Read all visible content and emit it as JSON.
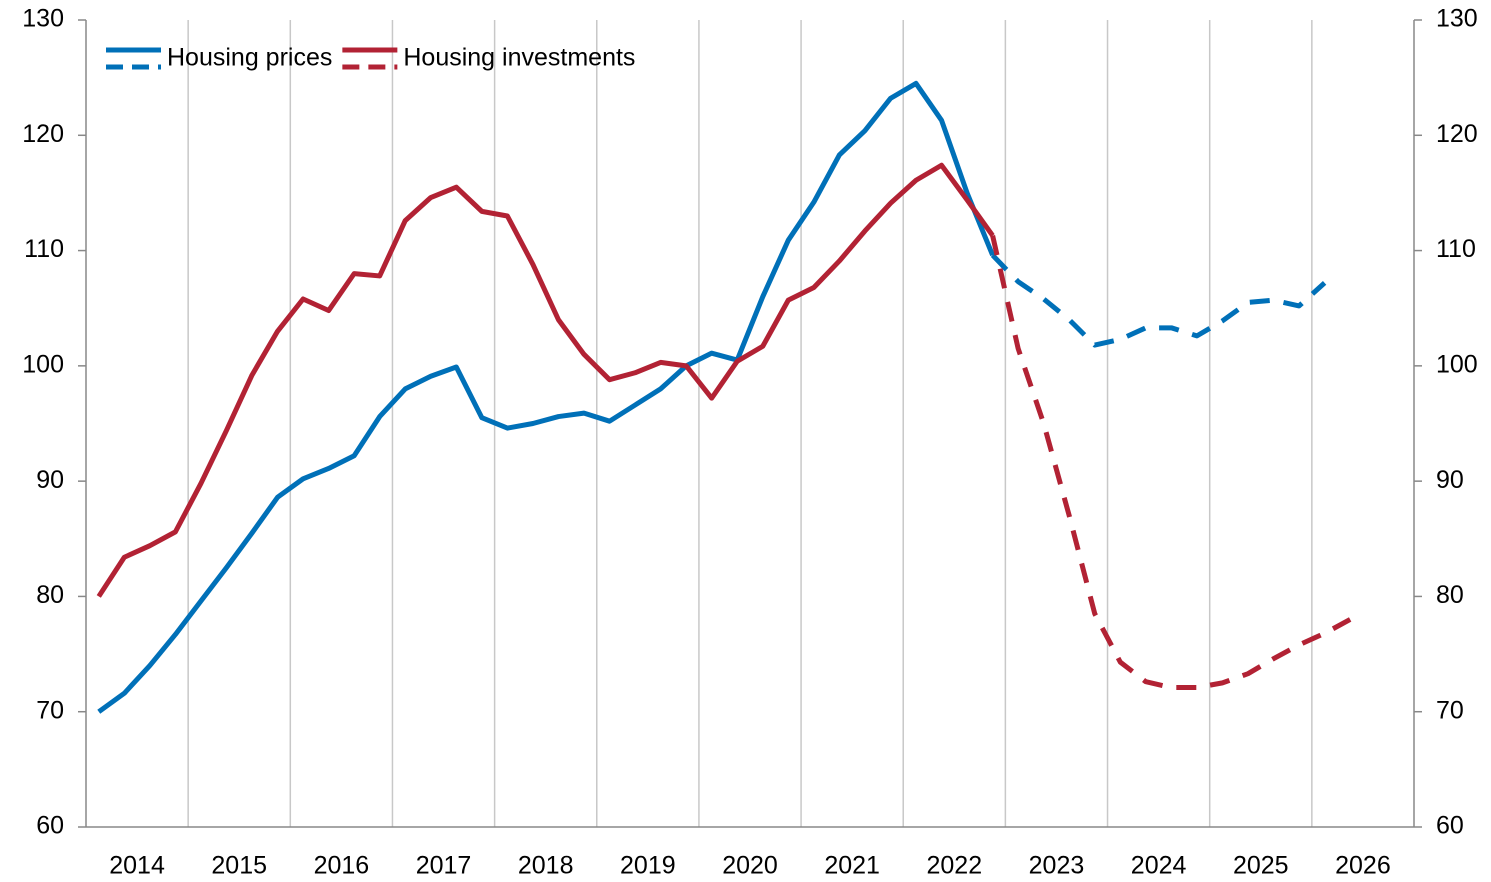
{
  "chart_data": {
    "type": "line",
    "x": [
      2014.125,
      2014.375,
      2014.625,
      2014.875,
      2015.125,
      2015.375,
      2015.625,
      2015.875,
      2016.125,
      2016.375,
      2016.625,
      2016.875,
      2017.125,
      2017.375,
      2017.625,
      2017.875,
      2018.125,
      2018.375,
      2018.625,
      2018.875,
      2019.125,
      2019.375,
      2019.625,
      2019.875,
      2020.125,
      2020.375,
      2020.625,
      2020.875,
      2021.125,
      2021.375,
      2021.625,
      2021.875,
      2022.125,
      2022.375,
      2022.625,
      2022.875,
      2023.125,
      2023.375,
      2023.625,
      2023.875,
      2024.125,
      2024.375,
      2024.625,
      2024.875,
      2025.125,
      2025.375,
      2025.625,
      2025.875,
      2026.125,
      2026.375
    ],
    "series": [
      {
        "name": "Housing prices",
        "color": "#0070b8",
        "dashed_from": 35,
        "values": [
          70,
          71.6,
          74,
          76.7,
          79.6,
          82.5,
          85.5,
          88.6,
          90.2,
          91.1,
          92.2,
          95.6,
          98,
          99.1,
          99.9,
          95.5,
          94.6,
          95,
          95.6,
          95.9,
          95.2,
          96.6,
          98,
          100,
          101.1,
          100.5,
          106,
          110.9,
          114.2,
          118.3,
          120.4,
          123.2,
          124.5,
          121.3,
          115,
          109.6,
          107.3,
          105.8,
          104,
          101.8,
          102.3,
          103.3,
          103.3,
          102.6,
          103.9,
          105.5,
          105.7,
          105.2,
          107.2,
          null
        ]
      },
      {
        "name": "Housing investments",
        "color": "#b22234",
        "dashed_from": 35,
        "values": [
          80,
          83.4,
          84.4,
          85.6,
          89.8,
          94.4,
          99.2,
          103,
          105.8,
          104.8,
          108,
          107.8,
          112.6,
          114.6,
          115.5,
          113.4,
          113,
          108.8,
          104,
          101,
          98.8,
          99.4,
          100.3,
          100,
          97.2,
          100.4,
          101.7,
          105.7,
          106.8,
          109.1,
          111.7,
          114.1,
          116.1,
          117.4,
          114.4,
          111.3,
          101.5,
          95,
          87,
          78.5,
          74.3,
          72.6,
          72.1,
          72.1,
          72.5,
          73.3,
          74.6,
          75.8,
          76.8,
          78
        ]
      }
    ],
    "xlim": [
      2014,
      2027
    ],
    "xgrid": [
      2015,
      2016,
      2017,
      2018,
      2019,
      2020,
      2021,
      2022,
      2023,
      2024,
      2025,
      2026
    ],
    "xticks": [
      {
        "value": 2014.5,
        "label": "2014"
      },
      {
        "value": 2015.5,
        "label": "2015"
      },
      {
        "value": 2016.5,
        "label": "2016"
      },
      {
        "value": 2017.5,
        "label": "2017"
      },
      {
        "value": 2018.5,
        "label": "2018"
      },
      {
        "value": 2019.5,
        "label": "2019"
      },
      {
        "value": 2020.5,
        "label": "2020"
      },
      {
        "value": 2021.5,
        "label": "2021"
      },
      {
        "value": 2022.5,
        "label": "2022"
      },
      {
        "value": 2023.5,
        "label": "2023"
      },
      {
        "value": 2024.5,
        "label": "2024"
      },
      {
        "value": 2025.5,
        "label": "2025"
      },
      {
        "value": 2026.5,
        "label": "2026"
      }
    ],
    "ylim": [
      60,
      130
    ],
    "yticks": [
      60,
      70,
      80,
      90,
      100,
      110,
      120,
      130
    ],
    "y2lim": [
      60,
      130
    ],
    "y2ticks": [
      60,
      70,
      80,
      90,
      100,
      110,
      120,
      130
    ],
    "legend": "upper left"
  }
}
